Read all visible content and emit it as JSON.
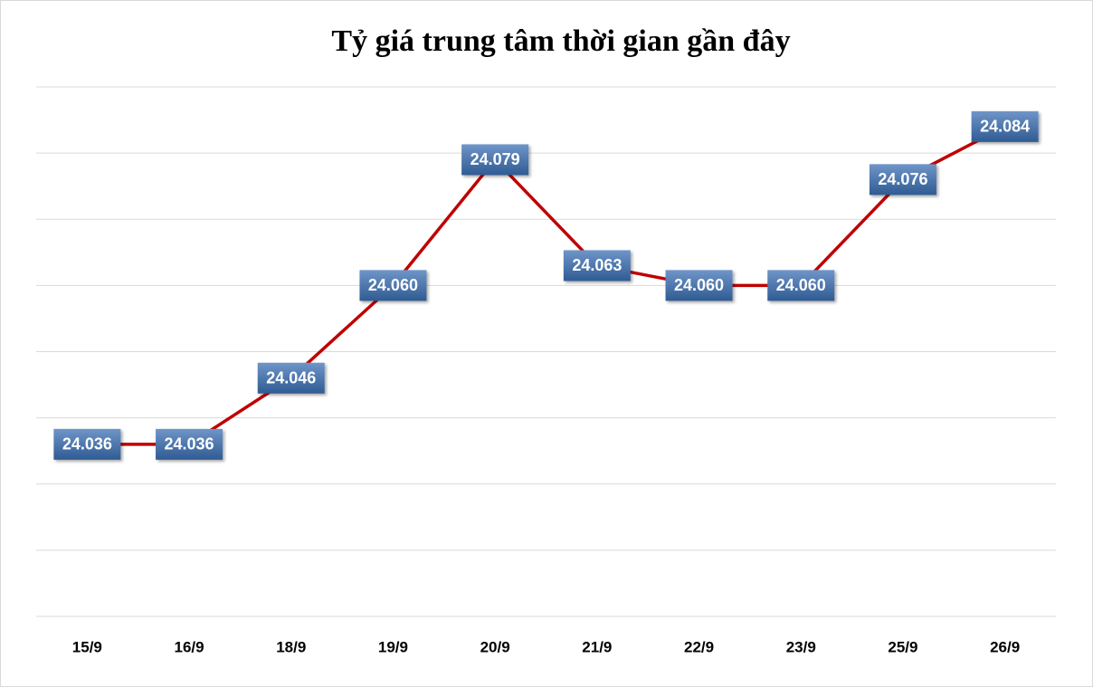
{
  "chart_data": {
    "type": "line",
    "title": "Tỷ giá trung tâm thời gian gần đây",
    "categories": [
      "15/9",
      "16/9",
      "18/9",
      "19/9",
      "20/9",
      "21/9",
      "22/9",
      "23/9",
      "25/9",
      "26/9"
    ],
    "series": [
      {
        "color": "#c00000",
        "values": [
          24036,
          24036,
          24046,
          24060,
          24079,
          24063,
          24060,
          24060,
          24076,
          24084
        ],
        "value_labels": [
          "24.036",
          "24.036",
          "24.046",
          "24.060",
          "24.079",
          "24.063",
          "24.060",
          "24.060",
          "24.076",
          "24.084"
        ]
      }
    ],
    "ylim": [
      24010,
      24090
    ],
    "yticks": [
      24010,
      24020,
      24030,
      24040,
      24050,
      24060,
      24070,
      24080,
      24090
    ],
    "grid": true
  }
}
